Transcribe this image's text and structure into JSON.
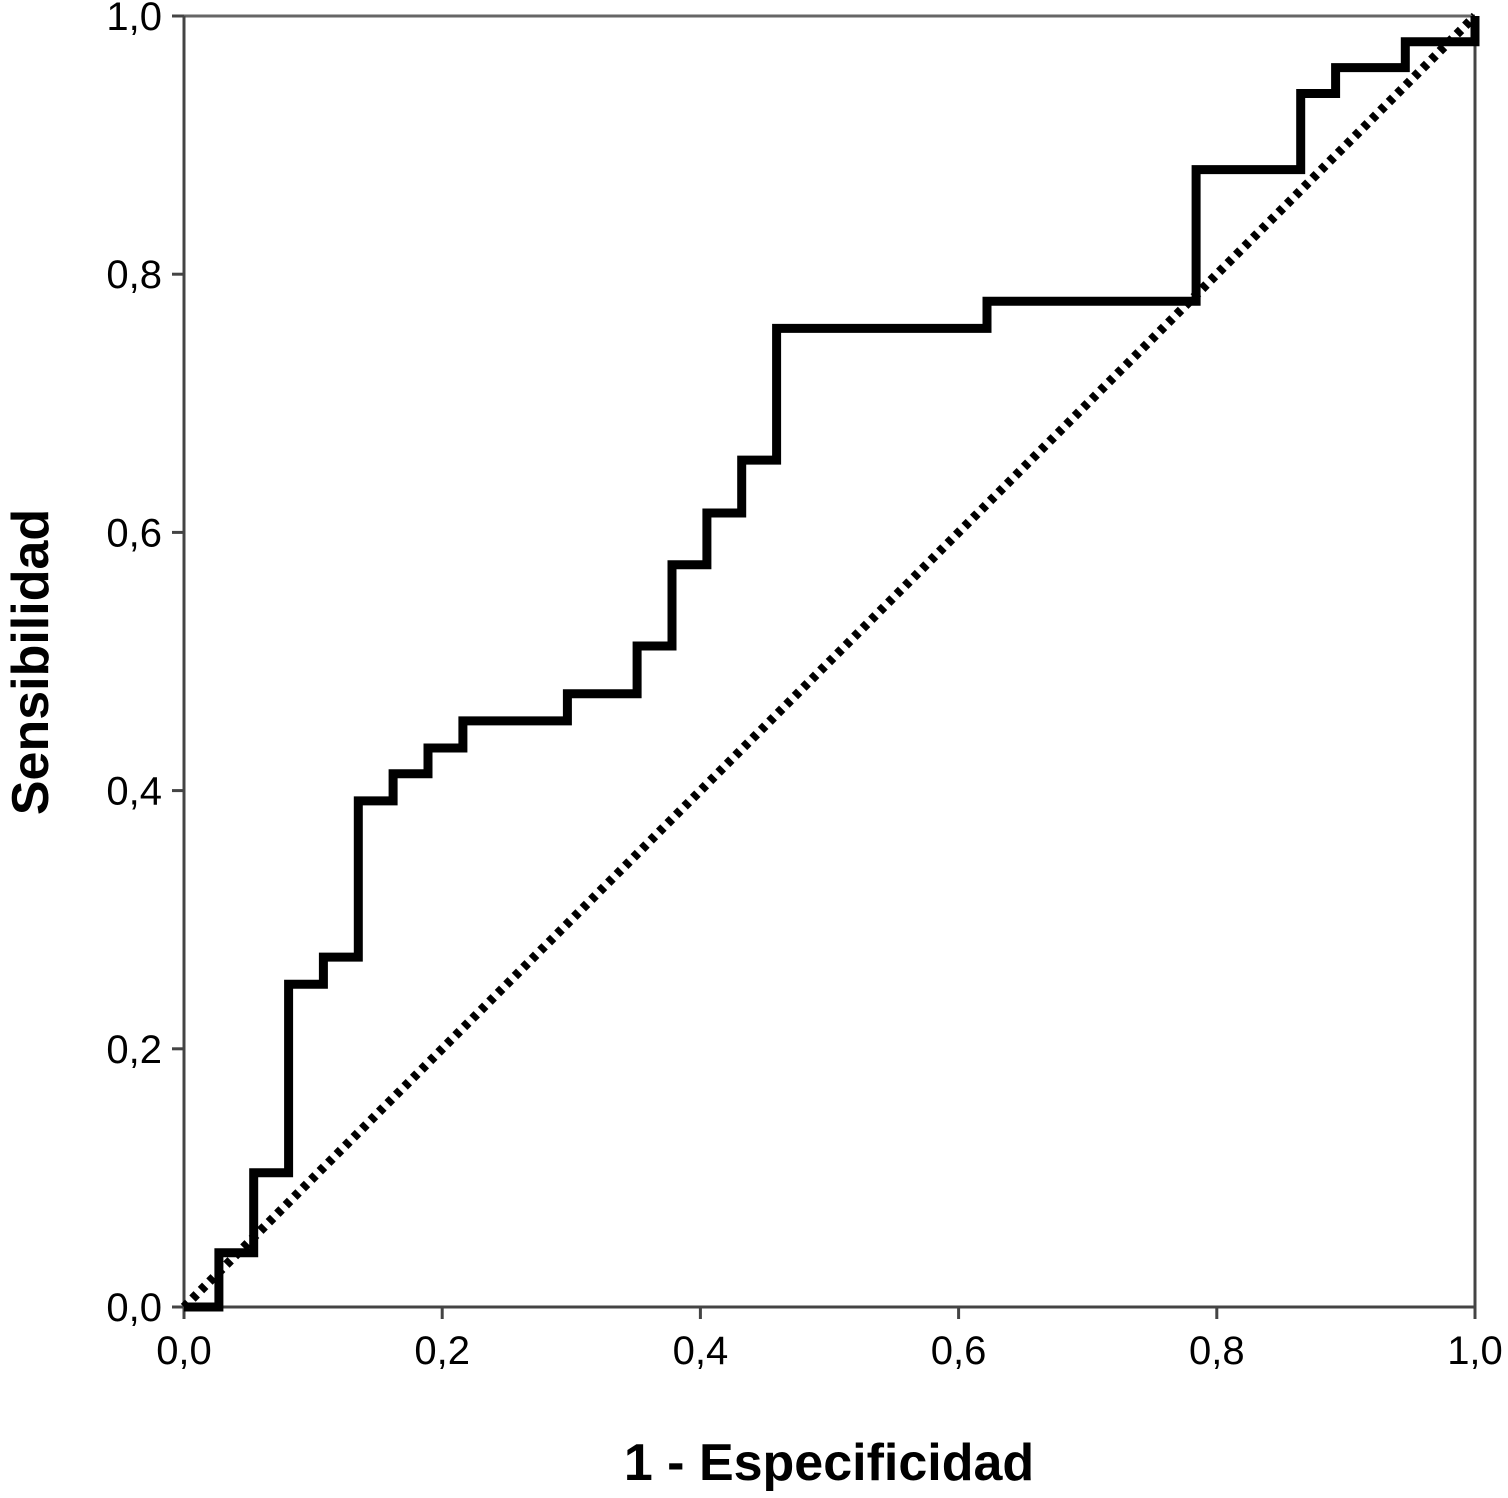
{
  "chart_data": {
    "type": "line",
    "title": "",
    "xlabel": "1 - Especificidad",
    "ylabel": "Sensibilidad",
    "xlim": [
      0,
      1
    ],
    "ylim": [
      0,
      1
    ],
    "x_ticks": [
      "0,0",
      "0,2",
      "0,4",
      "0,6",
      "0,8",
      "1,0"
    ],
    "y_ticks": [
      "0,0",
      "0,2",
      "0,4",
      "0,6",
      "0,8",
      "1,0"
    ],
    "grid": false,
    "legend": "none",
    "series": [
      {
        "style": "solid-step",
        "color": "#000000",
        "points": [
          [
            0.0,
            0.0
          ],
          [
            0.027,
            0.0
          ],
          [
            0.027,
            0.042
          ],
          [
            0.054,
            0.042
          ],
          [
            0.054,
            0.104
          ],
          [
            0.081,
            0.104
          ],
          [
            0.081,
            0.25
          ],
          [
            0.108,
            0.25
          ],
          [
            0.108,
            0.271
          ],
          [
            0.135,
            0.271
          ],
          [
            0.135,
            0.392
          ],
          [
            0.162,
            0.392
          ],
          [
            0.162,
            0.413
          ],
          [
            0.189,
            0.413
          ],
          [
            0.189,
            0.433
          ],
          [
            0.216,
            0.433
          ],
          [
            0.216,
            0.454
          ],
          [
            0.297,
            0.454
          ],
          [
            0.297,
            0.475
          ],
          [
            0.351,
            0.475
          ],
          [
            0.351,
            0.512
          ],
          [
            0.378,
            0.512
          ],
          [
            0.378,
            0.575
          ],
          [
            0.405,
            0.575
          ],
          [
            0.405,
            0.615
          ],
          [
            0.432,
            0.615
          ],
          [
            0.432,
            0.656
          ],
          [
            0.459,
            0.656
          ],
          [
            0.459,
            0.758
          ],
          [
            0.622,
            0.758
          ],
          [
            0.622,
            0.779
          ],
          [
            0.784,
            0.779
          ],
          [
            0.784,
            0.881
          ],
          [
            0.865,
            0.881
          ],
          [
            0.865,
            0.94
          ],
          [
            0.892,
            0.94
          ],
          [
            0.892,
            0.96
          ],
          [
            0.946,
            0.96
          ],
          [
            0.946,
            0.98
          ],
          [
            1.0,
            0.98
          ],
          [
            1.0,
            1.0
          ]
        ]
      },
      {
        "style": "dotted-reference",
        "color": "#000000",
        "points": [
          [
            0.0,
            0.0
          ],
          [
            1.0,
            1.0
          ]
        ]
      }
    ]
  }
}
